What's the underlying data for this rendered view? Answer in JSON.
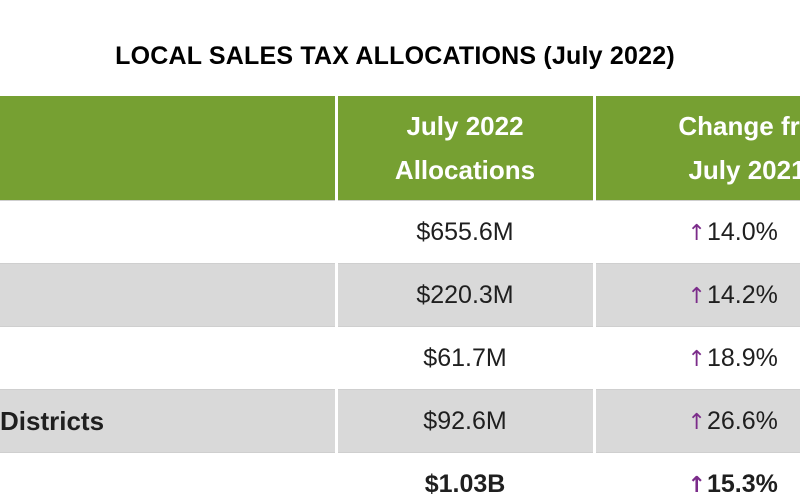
{
  "title": "LOCAL SALES TAX ALLOCATIONS (July 2022)",
  "table": {
    "headers": [
      {
        "lines": [
          "",
          ""
        ]
      },
      {
        "lines": [
          "July 2022",
          "Allocations"
        ]
      },
      {
        "lines": [
          "Change fro",
          "July 2021"
        ]
      }
    ],
    "rows": [
      {
        "name": "",
        "allocation": "$655.6M",
        "change": "14.0%"
      },
      {
        "name": "",
        "allocation": "$220.3M",
        "change": "14.2%"
      },
      {
        "name": "",
        "allocation": "$61.7M",
        "change": "18.9%"
      },
      {
        "name": "Districts",
        "allocation": "$92.6M",
        "change": "26.6%"
      },
      {
        "name": "",
        "allocation": "$1.03B",
        "change": "15.3%"
      }
    ]
  },
  "icons": {
    "change_direction": "up-arrow-icon",
    "up_arrow_color": "#7b2c8a"
  },
  "colors": {
    "header_green": "#76a032",
    "shaded_row": "#d9d9d9"
  }
}
